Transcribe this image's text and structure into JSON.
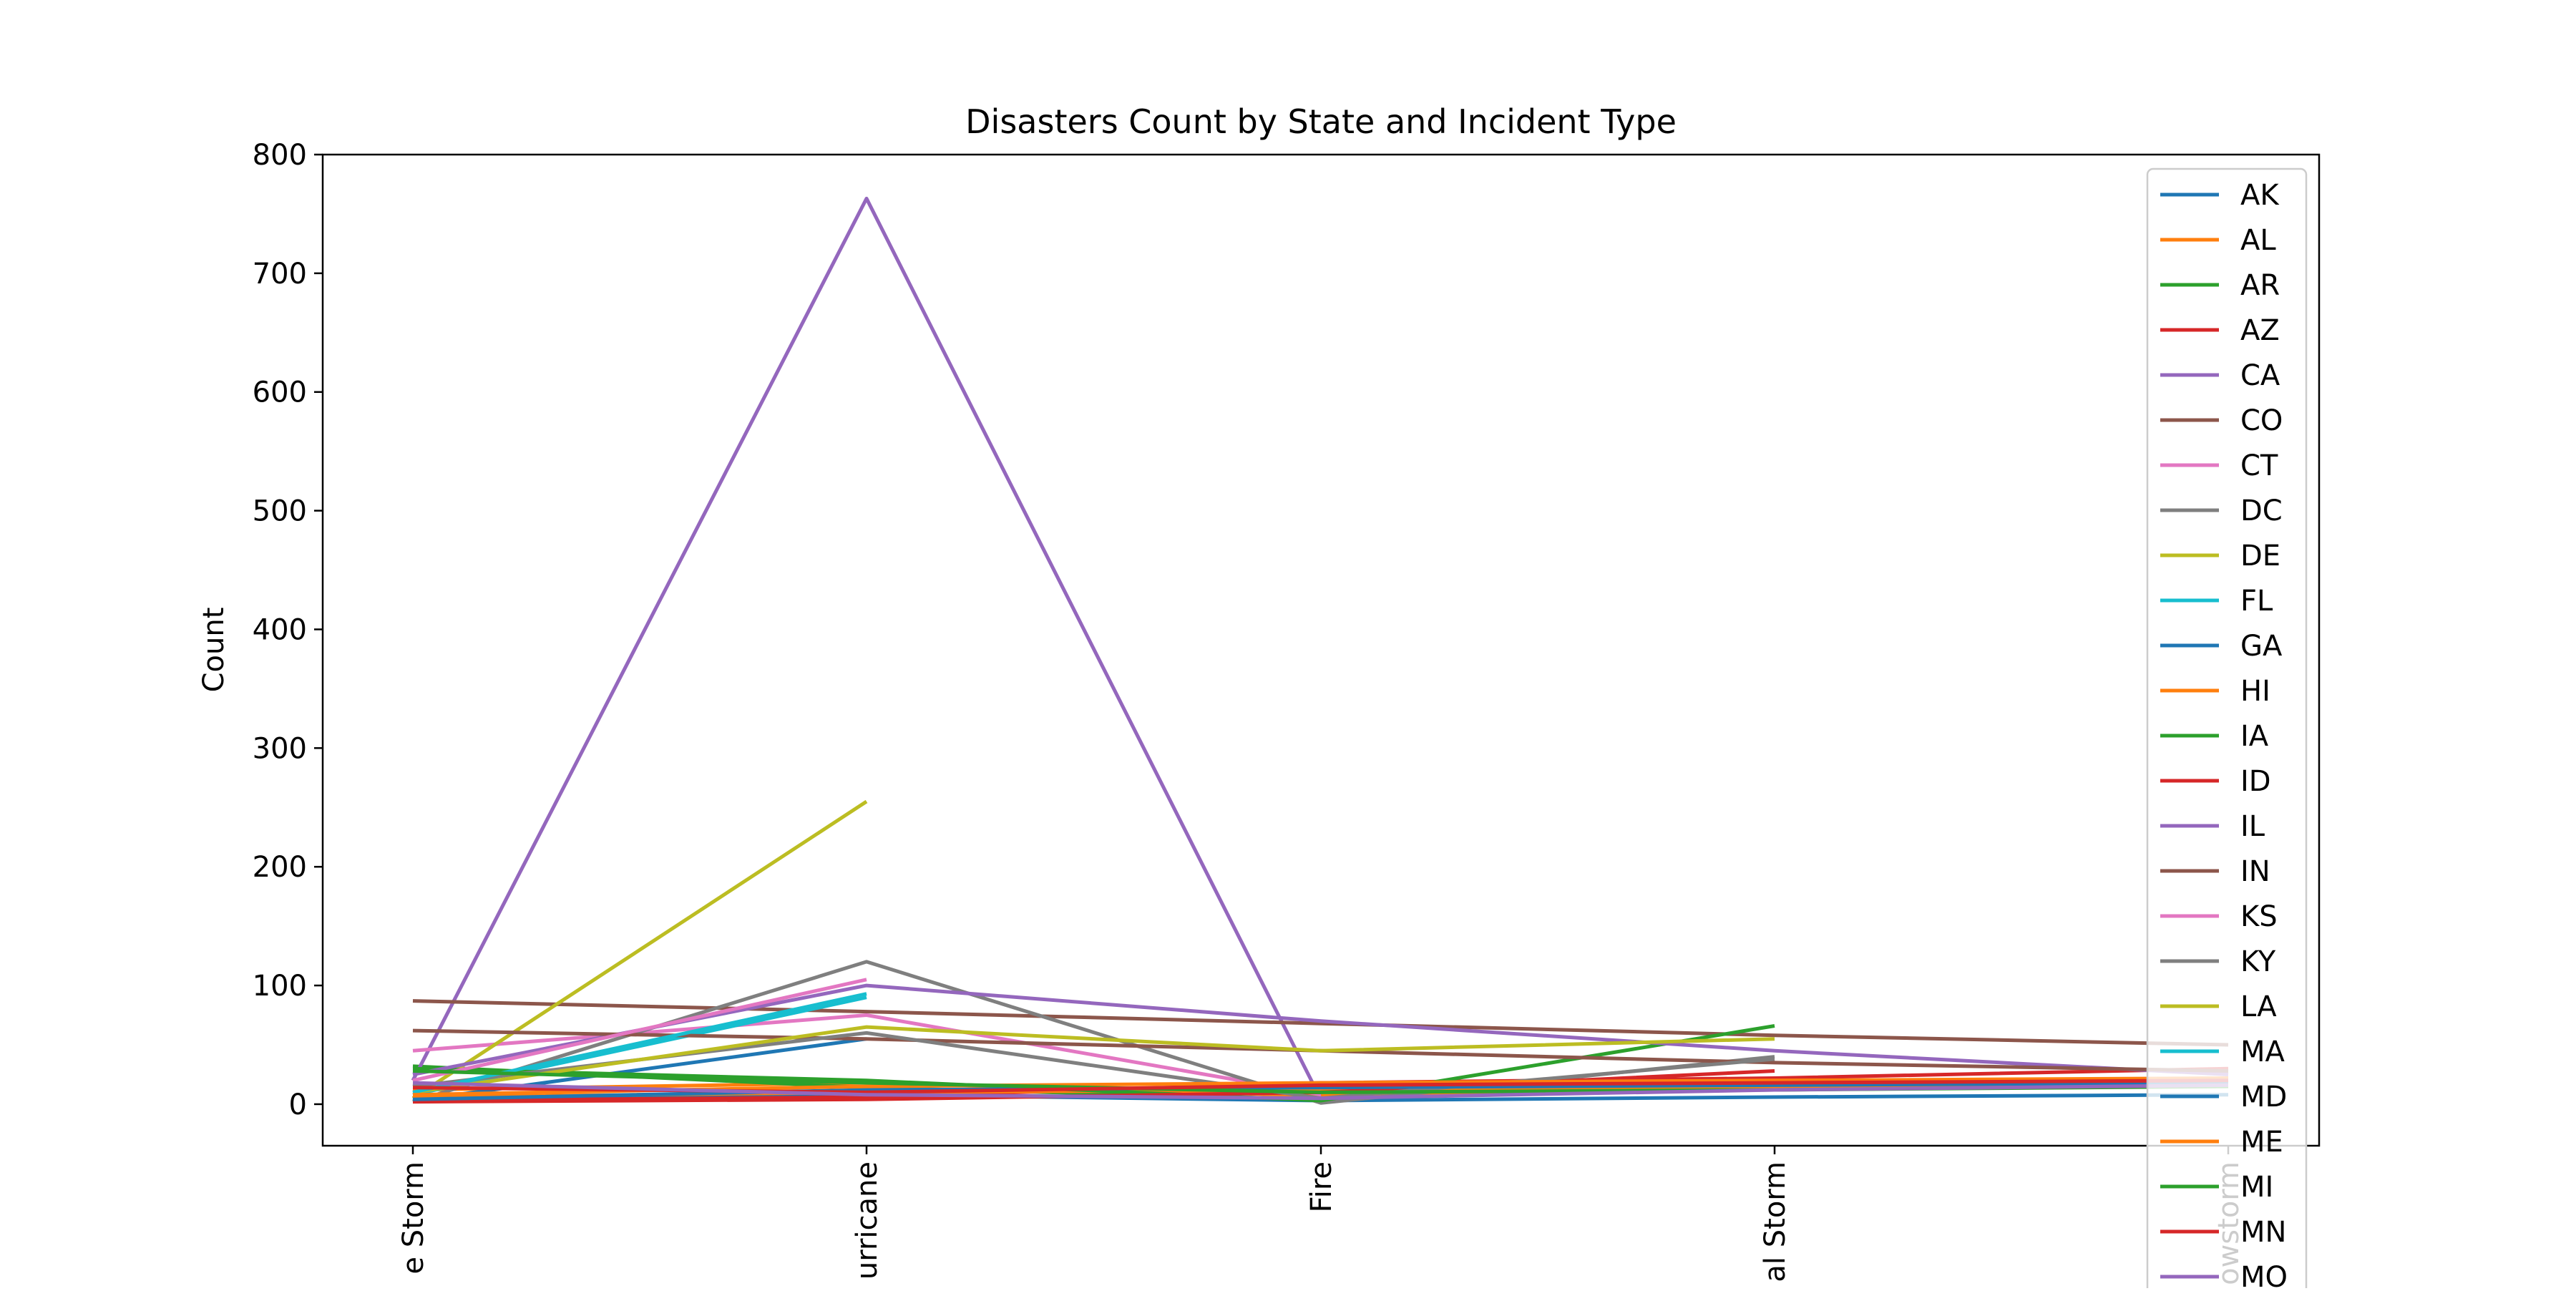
{
  "chart_data": {
    "type": "line",
    "title": "Disasters Count by State and Incident Type",
    "xlabel": "",
    "ylabel": "Count",
    "categories": [
      "Severe Storm",
      "Hurricane",
      "Fire",
      "Tropical Storm",
      "Snowstorm"
    ],
    "category_labels_visible": [
      "e Storm",
      "urricane",
      "Fire",
      "al Storm",
      "owstorm"
    ],
    "ylim": [
      -35,
      800
    ],
    "yticks": [
      0,
      100,
      200,
      300,
      400,
      500,
      600,
      700,
      800
    ],
    "grid": false,
    "legend_position": "right",
    "series": [
      {
        "name": "AK",
        "color": "#1f77b4",
        "values": [
          5,
          8,
          3,
          6,
          8
        ]
      },
      {
        "name": "AL",
        "color": "#ff7f0e",
        "values": [
          12,
          18,
          7,
          14,
          20
        ]
      },
      {
        "name": "AR",
        "color": "#2ca02c",
        "values": [
          32,
          14,
          4,
          null,
          null
        ]
      },
      {
        "name": "AZ",
        "color": "#d62728",
        "values": [
          3,
          6,
          18,
          22,
          30
        ]
      },
      {
        "name": "CA",
        "color": "#9467bd",
        "values": [
          20,
          763,
          4,
          null,
          null
        ]
      },
      {
        "name": "CO",
        "color": "#8c564b",
        "values": [
          87,
          78,
          68,
          58,
          50
        ]
      },
      {
        "name": "CT",
        "color": "#e377c2",
        "values": [
          45,
          75,
          8,
          null,
          null
        ]
      },
      {
        "name": "DC",
        "color": "#7f7f7f",
        "values": [
          2,
          120,
          1,
          40,
          null
        ]
      },
      {
        "name": "DE",
        "color": "#bcbd22",
        "values": [
          5,
          255,
          null,
          null,
          null
        ]
      },
      {
        "name": "FL",
        "color": "#17becf",
        "values": [
          8,
          90,
          null,
          null,
          null
        ]
      },
      {
        "name": "GA",
        "color": "#1f77b4",
        "values": [
          3,
          55,
          null,
          null,
          null
        ]
      },
      {
        "name": "HI",
        "color": "#ff7f0e",
        "values": [
          6,
          10,
          12,
          15,
          18
        ]
      },
      {
        "name": "IA",
        "color": "#2ca02c",
        "values": [
          30,
          20,
          3,
          66,
          null
        ]
      },
      {
        "name": "ID",
        "color": "#d62728",
        "values": [
          2,
          4,
          10,
          28,
          null
        ]
      },
      {
        "name": "IL",
        "color": "#9467bd",
        "values": [
          25,
          100,
          70,
          45,
          25
        ]
      },
      {
        "name": "IN",
        "color": "#8c564b",
        "values": [
          62,
          55,
          45,
          35,
          28
        ]
      },
      {
        "name": "KS",
        "color": "#e377c2",
        "values": [
          20,
          105,
          null,
          null,
          null
        ]
      },
      {
        "name": "KY",
        "color": "#7f7f7f",
        "values": [
          15,
          60,
          5,
          38,
          null
        ]
      },
      {
        "name": "LA",
        "color": "#bcbd22",
        "values": [
          10,
          65,
          45,
          55,
          null
        ]
      },
      {
        "name": "MA",
        "color": "#17becf",
        "values": [
          10,
          93,
          null,
          null,
          null
        ]
      },
      {
        "name": "MD",
        "color": "#1f77b4",
        "values": [
          4,
          12,
          14,
          16,
          18
        ]
      },
      {
        "name": "ME",
        "color": "#ff7f0e",
        "values": [
          8,
          15,
          18,
          20,
          22
        ]
      },
      {
        "name": "MI",
        "color": "#2ca02c",
        "values": [
          28,
          18,
          10,
          12,
          15
        ]
      },
      {
        "name": "MN",
        "color": "#d62728",
        "values": [
          14,
          10,
          16,
          18,
          20
        ]
      },
      {
        "name": "MO",
        "color": "#9467bd",
        "values": [
          18,
          8,
          5,
          12,
          16
        ]
      }
    ]
  }
}
